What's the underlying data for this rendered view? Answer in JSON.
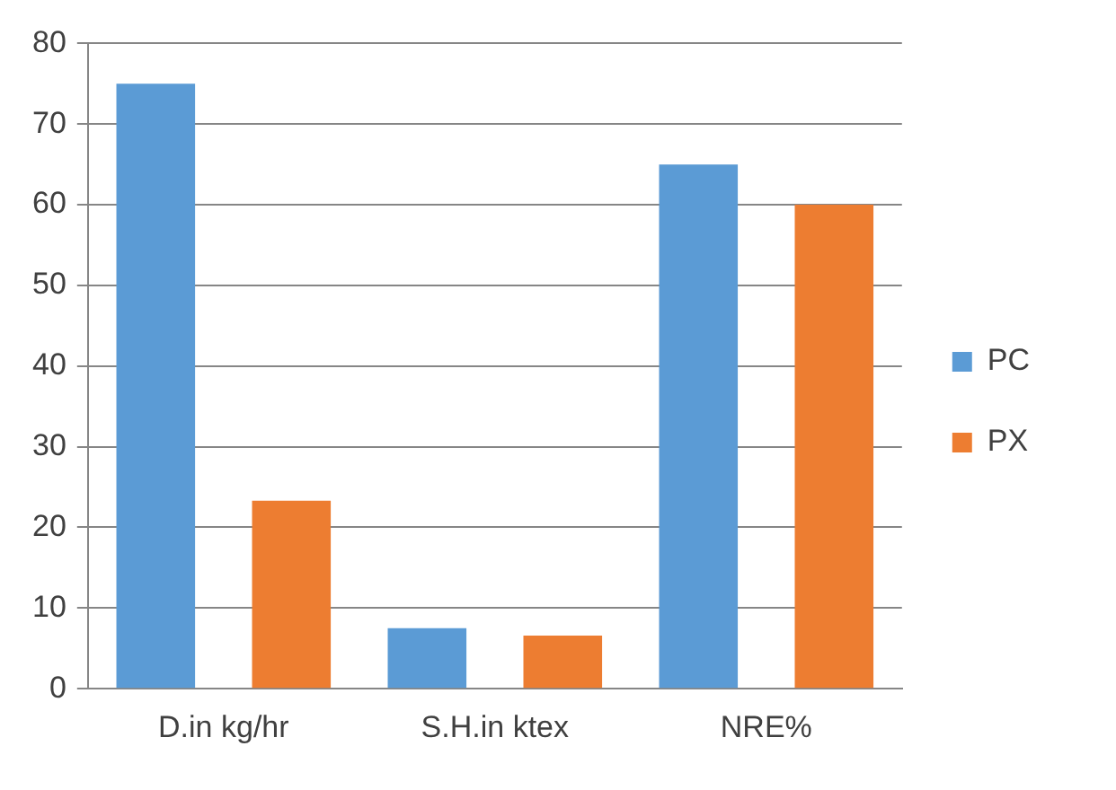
{
  "chart_data": {
    "type": "bar",
    "categories": [
      "D.in kg/hr",
      "S.H.in ktex",
      "NRE%"
    ],
    "series": [
      {
        "name": "PC",
        "color": "#5b9bd5",
        "values": [
          75,
          7.5,
          65
        ]
      },
      {
        "name": "PX",
        "color": "#ed7d31",
        "values": [
          23.3,
          6.6,
          60
        ]
      }
    ],
    "ylim": [
      0,
      80
    ],
    "yticks": [
      0,
      10,
      20,
      30,
      40,
      50,
      60,
      70,
      80
    ],
    "grid": "y",
    "legend": "right"
  }
}
